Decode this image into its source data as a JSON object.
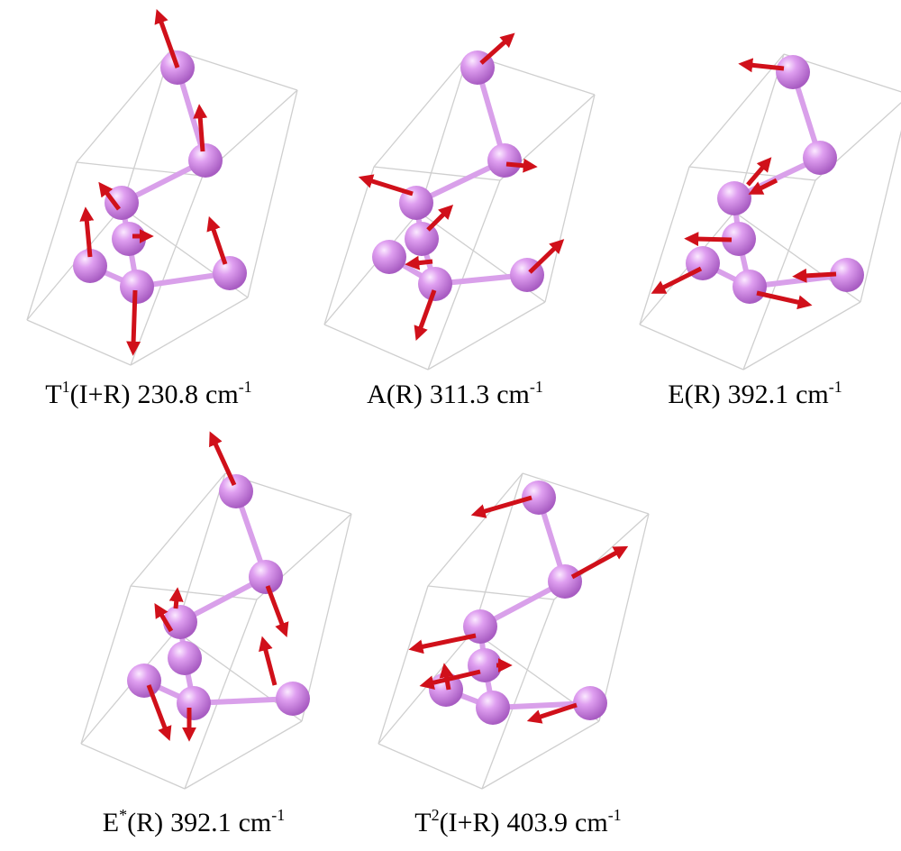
{
  "panels": [
    {
      "symbol": "T",
      "symbol_sup": "1",
      "activity": "(I+R)",
      "frequency": "230.8",
      "unit": "cm",
      "unit_sup": "-1"
    },
    {
      "symbol": "A",
      "activity": "(R)",
      "frequency": "311.3",
      "unit": "cm",
      "unit_sup": "-1"
    },
    {
      "symbol": "E",
      "activity": "(R)",
      "frequency": "392.1",
      "unit": "cm",
      "unit_sup": "-1"
    },
    {
      "symbol": "E",
      "symbol_sup": "*",
      "activity": "(R)",
      "frequency": "392.1",
      "unit": "cm",
      "unit_sup": "-1"
    },
    {
      "symbol": "T",
      "symbol_sup": "2",
      "activity": "(I+R)",
      "frequency": "403.9",
      "unit": "cm",
      "unit_sup": "-1"
    }
  ]
}
